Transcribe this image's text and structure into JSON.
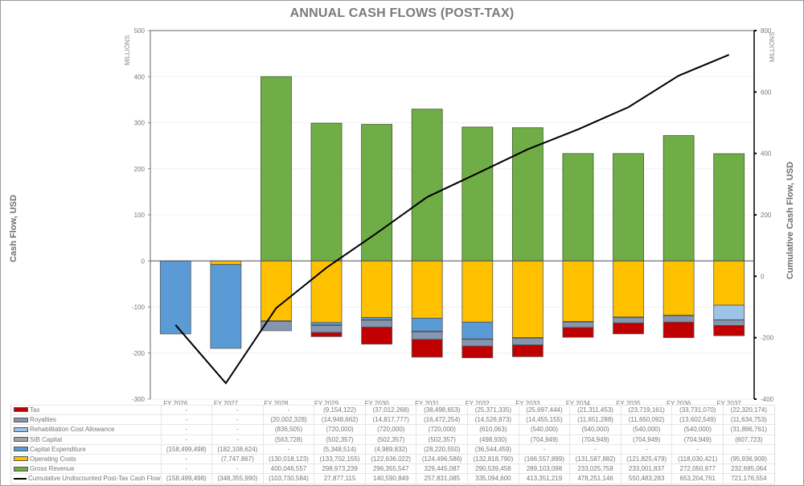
{
  "chart_data": {
    "type": "bar",
    "subtype": "stacked-bar-with-line",
    "title": "ANNUAL CASH FLOWS (POST-TAX)",
    "ylabel": "Cash Flow, USD",
    "ylabel_right": "Cumulative Cash Flow, USD",
    "y_units_left": "MILLIONS",
    "y_units_right": "MILLIONS",
    "ylim": [
      -300,
      500
    ],
    "ylim_right": [
      -400,
      800
    ],
    "yticks": [
      500,
      400,
      300,
      200,
      100,
      0,
      -100,
      -200,
      -300
    ],
    "yticks_right": [
      800,
      600,
      400,
      200,
      0,
      -200,
      -400
    ],
    "grid": true,
    "legend_position": "table-bottom",
    "categories": [
      "FY 2026",
      "FY 2027",
      "FY 2028",
      "FY 2029",
      "FY 2030",
      "FY 2031",
      "FY 2032",
      "FY 2033",
      "FY 2034",
      "FY 2035",
      "FY 2036",
      "FY 2037"
    ],
    "series": [
      {
        "name": "Tax",
        "color": "#c00000",
        "type": "bar",
        "values": [
          0,
          0,
          0,
          -9154122,
          -37012268,
          -38498653,
          -25371335,
          -25697444,
          -21311453,
          -23719161,
          -33731070,
          -22320174
        ],
        "display": [
          "-",
          "-",
          "-",
          "(9,154,122)",
          "(37,012,268)",
          "(38,498,653)",
          "(25,371,335)",
          "(25,697,444)",
          "(21,311,453)",
          "(23,719,161)",
          "(33,731,070)",
          "(22,320,174)"
        ]
      },
      {
        "name": "Royalties",
        "color": "#8496b0",
        "type": "bar",
        "values": [
          0,
          0,
          -20002328,
          -14948662,
          -14817777,
          -16472254,
          -14526973,
          -14455155,
          -11651288,
          -11650092,
          -13602549,
          -11634753
        ],
        "display": [
          "-",
          "-",
          "(20,002,328)",
          "(14,948,662)",
          "(14,817,777)",
          "(16,472,254)",
          "(14,526,973)",
          "(14,455,155)",
          "(11,651,288)",
          "(11,650,092)",
          "(13,602,549)",
          "(11,634,753)"
        ]
      },
      {
        "name": "Rehabilitation Cost Allowance",
        "color": "#9dc3e6",
        "type": "bar",
        "values": [
          0,
          0,
          -836505,
          -720000,
          -720000,
          -720000,
          -610063,
          -540000,
          -540000,
          -540000,
          -540000,
          -31896761
        ],
        "display": [
          "-",
          "-",
          "(836,505)",
          "(720,000)",
          "(720,000)",
          "(720,000)",
          "(610,063)",
          "(540,000)",
          "(540,000)",
          "(540,000)",
          "(540,000)",
          "(31,896,761)"
        ]
      },
      {
        "name": "SIB Capital",
        "color": "#a5a5a5",
        "type": "bar",
        "values": [
          0,
          0,
          -563728,
          -502357,
          -502357,
          -502357,
          -498930,
          -704949,
          -704949,
          -704949,
          -704949,
          -607723
        ],
        "display": [
          "-",
          "-",
          "(563,728)",
          "(502,357)",
          "(502,357)",
          "(502,357)",
          "(498,930)",
          "(704,949)",
          "(704,949)",
          "(704,949)",
          "(704,949)",
          "(607,723)"
        ]
      },
      {
        "name": "Capital Expenditure",
        "color": "#5b9bd5",
        "type": "bar",
        "values": [
          -158499498,
          -182108624,
          0,
          -5348514,
          -4989832,
          -28220550,
          -36544459,
          0,
          0,
          0,
          0,
          0
        ],
        "display": [
          "(158,499,498)",
          "(182,108,624)",
          "-",
          "(5,348,514)",
          "(4,989,832)",
          "(28,220,550)",
          "(36,544,459)",
          "-",
          "-",
          "-",
          "-",
          "-"
        ]
      },
      {
        "name": "Operating Costs",
        "color": "#ffc000",
        "type": "bar",
        "values": [
          0,
          -7747867,
          -130018123,
          -133702155,
          -122636022,
          -124496586,
          -132818790,
          -166557899,
          -131587882,
          -121825479,
          -118030421,
          -95936909
        ],
        "display": [
          "-",
          "(7,747,867)",
          "(130,018,123)",
          "(133,702,155)",
          "(122,636,022)",
          "(124,496,586)",
          "(132,818,790)",
          "(166,557,899)",
          "(131,587,882)",
          "(121,825,479)",
          "(118,030,421)",
          "(95,936,909)"
        ]
      },
      {
        "name": "Gross Revenue",
        "color": "#70ad47",
        "type": "bar",
        "values": [
          0,
          0,
          400046557,
          298973239,
          296355547,
          329445087,
          290539458,
          289103098,
          233025758,
          233001837,
          272050977,
          232695064
        ],
        "display": [
          "-",
          "-",
          "400,046,557",
          "298,973,239",
          "296,355,547",
          "329,445,087",
          "290,539,458",
          "289,103,098",
          "233,025,758",
          "233,001,837",
          "272,050,977",
          "232,695,064"
        ]
      },
      {
        "name": "Cumulative Undiscounted Post-Tax Cash Flow",
        "color": "#000000",
        "type": "line",
        "axis": "right",
        "values": [
          -158499498,
          -348355990,
          -103730584,
          27877115,
          140590849,
          257831085,
          335094600,
          413351219,
          478251146,
          550483283,
          653204761,
          721176554
        ],
        "display": [
          "(158,499,498)",
          "(348,355,990)",
          "(103,730,584)",
          "27,877,115",
          "140,590,849",
          "257,831,085",
          "335,094,600",
          "413,351,219",
          "478,251,146",
          "550,483,283",
          "653,204,761",
          "721,176,554"
        ]
      }
    ]
  }
}
